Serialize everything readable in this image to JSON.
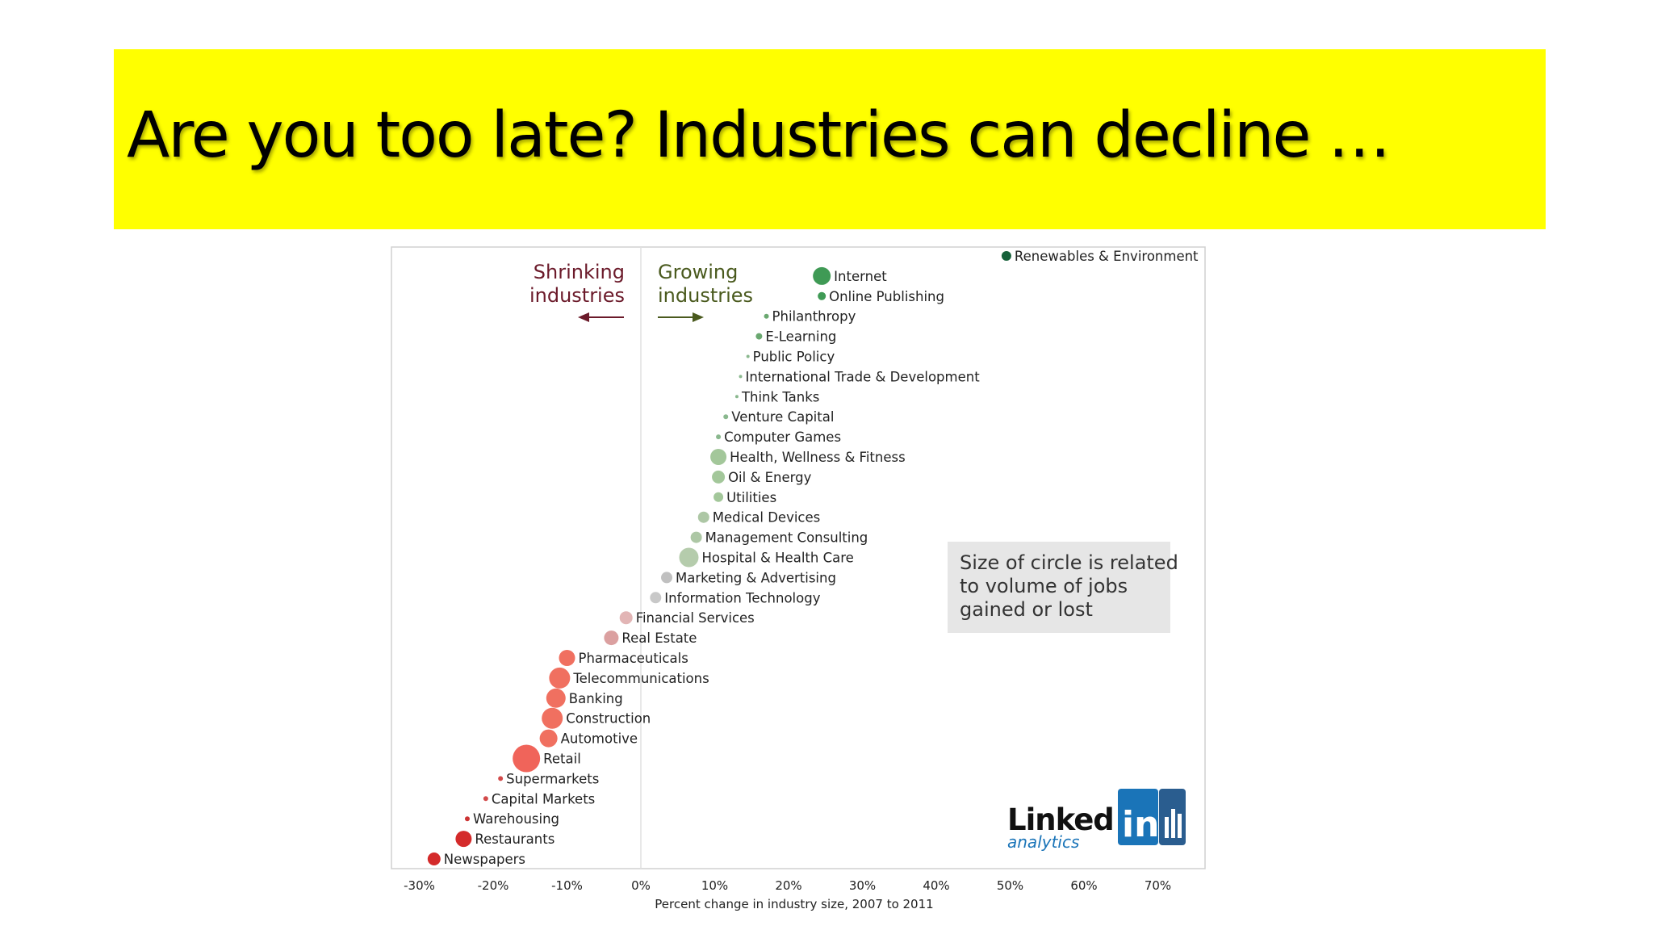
{
  "slide": {
    "title": "Are you too late? Industries can decline …"
  },
  "chart_data": {
    "type": "scatter",
    "title": "",
    "xlabel": "Percent change in industry size, 2007 to 2011",
    "ylabel": "",
    "xlim": [
      -32,
      77
    ],
    "xticks": [
      "-30%",
      "-20%",
      "-10%",
      "0%",
      "10%",
      "20%",
      "30%",
      "40%",
      "50%",
      "60%",
      "70%"
    ],
    "xtick_values": [
      -30,
      -20,
      -10,
      0,
      10,
      20,
      30,
      40,
      50,
      60,
      70
    ],
    "grid": false,
    "legend": "",
    "annotations": {
      "shrinking": [
        "Shrinking",
        "industries"
      ],
      "growing": [
        "Growing",
        "industries"
      ],
      "size_note": [
        "Size of circle is related",
        "to volume of jobs",
        "gained or lost"
      ]
    },
    "logo": {
      "main": "Linked",
      "in": "in",
      "sub": "analytics"
    },
    "colors": {
      "shrinking": "#6b1a2a",
      "growing": "#4a5a1e",
      "strong_red": "#d42a2a",
      "strong_green": "#1f6b3a"
    },
    "points": [
      {
        "name": "Renewables & Environment",
        "x": 49.5,
        "size": 6,
        "color": "#17613a"
      },
      {
        "name": "Internet",
        "x": 24.5,
        "size": 11,
        "color": "#3f9a55"
      },
      {
        "name": "Online Publishing",
        "x": 24.5,
        "size": 5,
        "color": "#3f9a55"
      },
      {
        "name": "Philanthropy",
        "x": 17,
        "size": 3,
        "color": "#6aa870"
      },
      {
        "name": "E-Learning",
        "x": 16,
        "size": 4,
        "color": "#6aa870"
      },
      {
        "name": "Public Policy",
        "x": 14.5,
        "size": 2,
        "color": "#8ab88e"
      },
      {
        "name": "International Trade & Development",
        "x": 13.5,
        "size": 2,
        "color": "#8ab88e"
      },
      {
        "name": "Think Tanks",
        "x": 13,
        "size": 2,
        "color": "#8ab88e"
      },
      {
        "name": "Venture Capital",
        "x": 11.5,
        "size": 3,
        "color": "#8ab88e"
      },
      {
        "name": "Computer Games",
        "x": 10.5,
        "size": 3,
        "color": "#8ab88e"
      },
      {
        "name": "Health, Wellness & Fitness",
        "x": 10.5,
        "size": 10,
        "color": "#a3c79a"
      },
      {
        "name": "Oil & Energy",
        "x": 10.5,
        "size": 8,
        "color": "#a3c79a"
      },
      {
        "name": "Utilities",
        "x": 10.5,
        "size": 6,
        "color": "#a3c79a"
      },
      {
        "name": "Medical Devices",
        "x": 8.5,
        "size": 7,
        "color": "#adc7a5"
      },
      {
        "name": "Management Consulting",
        "x": 7.5,
        "size": 7,
        "color": "#adc7a5"
      },
      {
        "name": "Hospital & Health Care",
        "x": 6.5,
        "size": 12,
        "color": "#b5ccac"
      },
      {
        "name": "Marketing & Advertising",
        "x": 3.5,
        "size": 7,
        "color": "#c0c0c0"
      },
      {
        "name": "Information Technology",
        "x": 2,
        "size": 7,
        "color": "#c8c8c8"
      },
      {
        "name": "Financial Services",
        "x": -2,
        "size": 8,
        "color": "#e2b5b5"
      },
      {
        "name": "Real Estate",
        "x": -4,
        "size": 9,
        "color": "#dba0a0"
      },
      {
        "name": "Pharmaceuticals",
        "x": -10,
        "size": 10,
        "color": "#f07060"
      },
      {
        "name": "Telecommunications",
        "x": -11,
        "size": 13,
        "color": "#f07060"
      },
      {
        "name": "Banking",
        "x": -11.5,
        "size": 12,
        "color": "#f07060"
      },
      {
        "name": "Construction",
        "x": -12,
        "size": 13,
        "color": "#f07060"
      },
      {
        "name": "Automotive",
        "x": -12.5,
        "size": 11,
        "color": "#f07060"
      },
      {
        "name": "Retail",
        "x": -15.5,
        "size": 17,
        "color": "#f0645a"
      },
      {
        "name": "Supermarkets",
        "x": -19,
        "size": 3,
        "color": "#d24a4a"
      },
      {
        "name": "Capital Markets",
        "x": -21,
        "size": 3,
        "color": "#d24a4a"
      },
      {
        "name": "Warehousing",
        "x": -23.5,
        "size": 3,
        "color": "#cc3333"
      },
      {
        "name": "Restaurants",
        "x": -24,
        "size": 10,
        "color": "#d42a2a"
      },
      {
        "name": "Newspapers",
        "x": -28,
        "size": 8,
        "color": "#d42a2a"
      }
    ]
  }
}
